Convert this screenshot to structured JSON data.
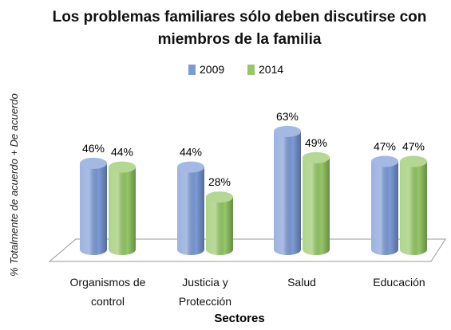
{
  "chart_data": {
    "type": "bar",
    "title": "Los problemas familiares sólo deben discutirse con miembros de la familia",
    "x_label": "Sectores",
    "y_label": "% Totalmente de acuerdo + De acuerdo",
    "categories": [
      "Organismos de control",
      "Justicia y Protección",
      "Salud",
      "Educación"
    ],
    "series": [
      {
        "name": "2009",
        "color": "#7b9ad6",
        "values": [
          46,
          44,
          63,
          47
        ],
        "value_labels": [
          "46%",
          "44%",
          "63%",
          "47%"
        ]
      },
      {
        "name": "2014",
        "color": "#94c865",
        "values": [
          44,
          28,
          49,
          47
        ],
        "value_labels": [
          "44%",
          "28%",
          "49%",
          "47%"
        ]
      }
    ],
    "ylim": [
      0,
      70
    ]
  }
}
